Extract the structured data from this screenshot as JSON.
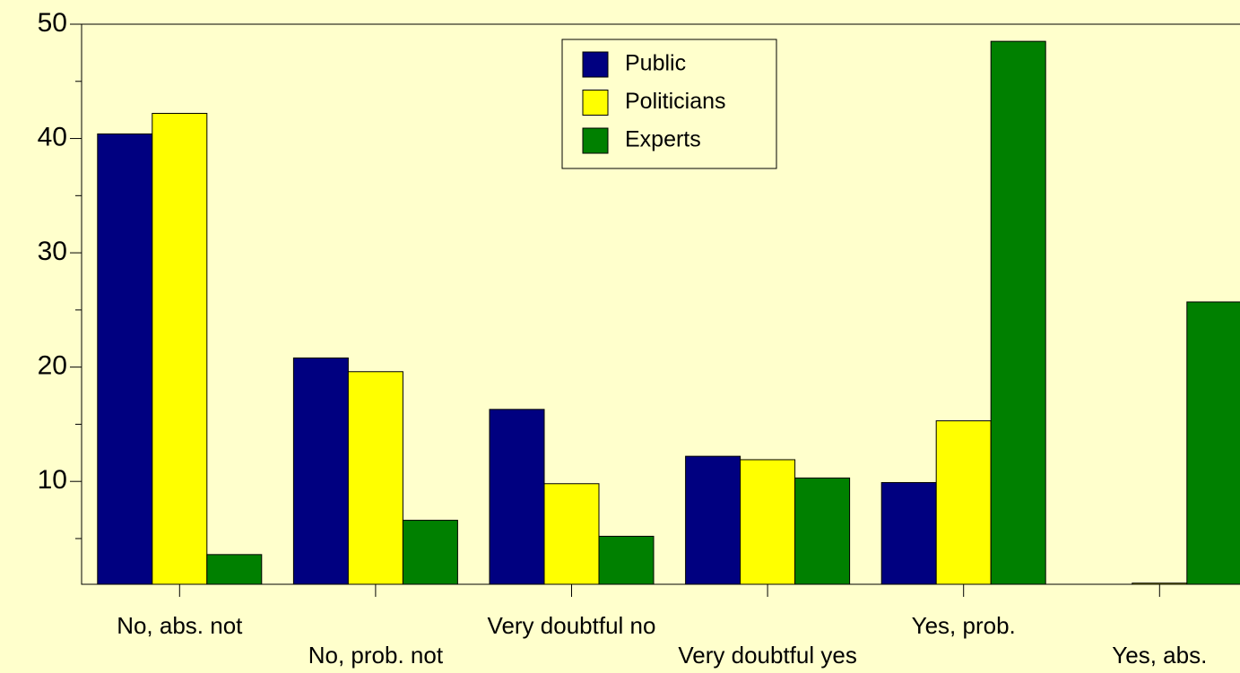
{
  "chart_data": {
    "type": "bar",
    "categories": [
      "No, abs. not",
      "No, prob. not",
      "Very doubtful no",
      "Very doubtful yes",
      "Yes, prob.",
      "Yes, abs."
    ],
    "series": [
      {
        "name": "Public",
        "color": "#000080",
        "values": [
          40.4,
          20.8,
          16.3,
          12.2,
          9.9,
          1
        ]
      },
      {
        "name": "Politicians",
        "color": "#ffff00",
        "values": [
          42.2,
          19.6,
          9.8,
          11.9,
          15.3,
          1.1
        ]
      },
      {
        "name": "Experts",
        "color": "#008000",
        "values": [
          3.6,
          6.6,
          5.2,
          10.3,
          48.5,
          25.7
        ]
      }
    ],
    "ylim": [
      1,
      50
    ],
    "yticks": [
      10,
      20,
      30,
      40,
      50
    ],
    "yticks_minor": [
      5,
      15,
      25,
      35,
      45
    ],
    "legend": "top-center"
  }
}
